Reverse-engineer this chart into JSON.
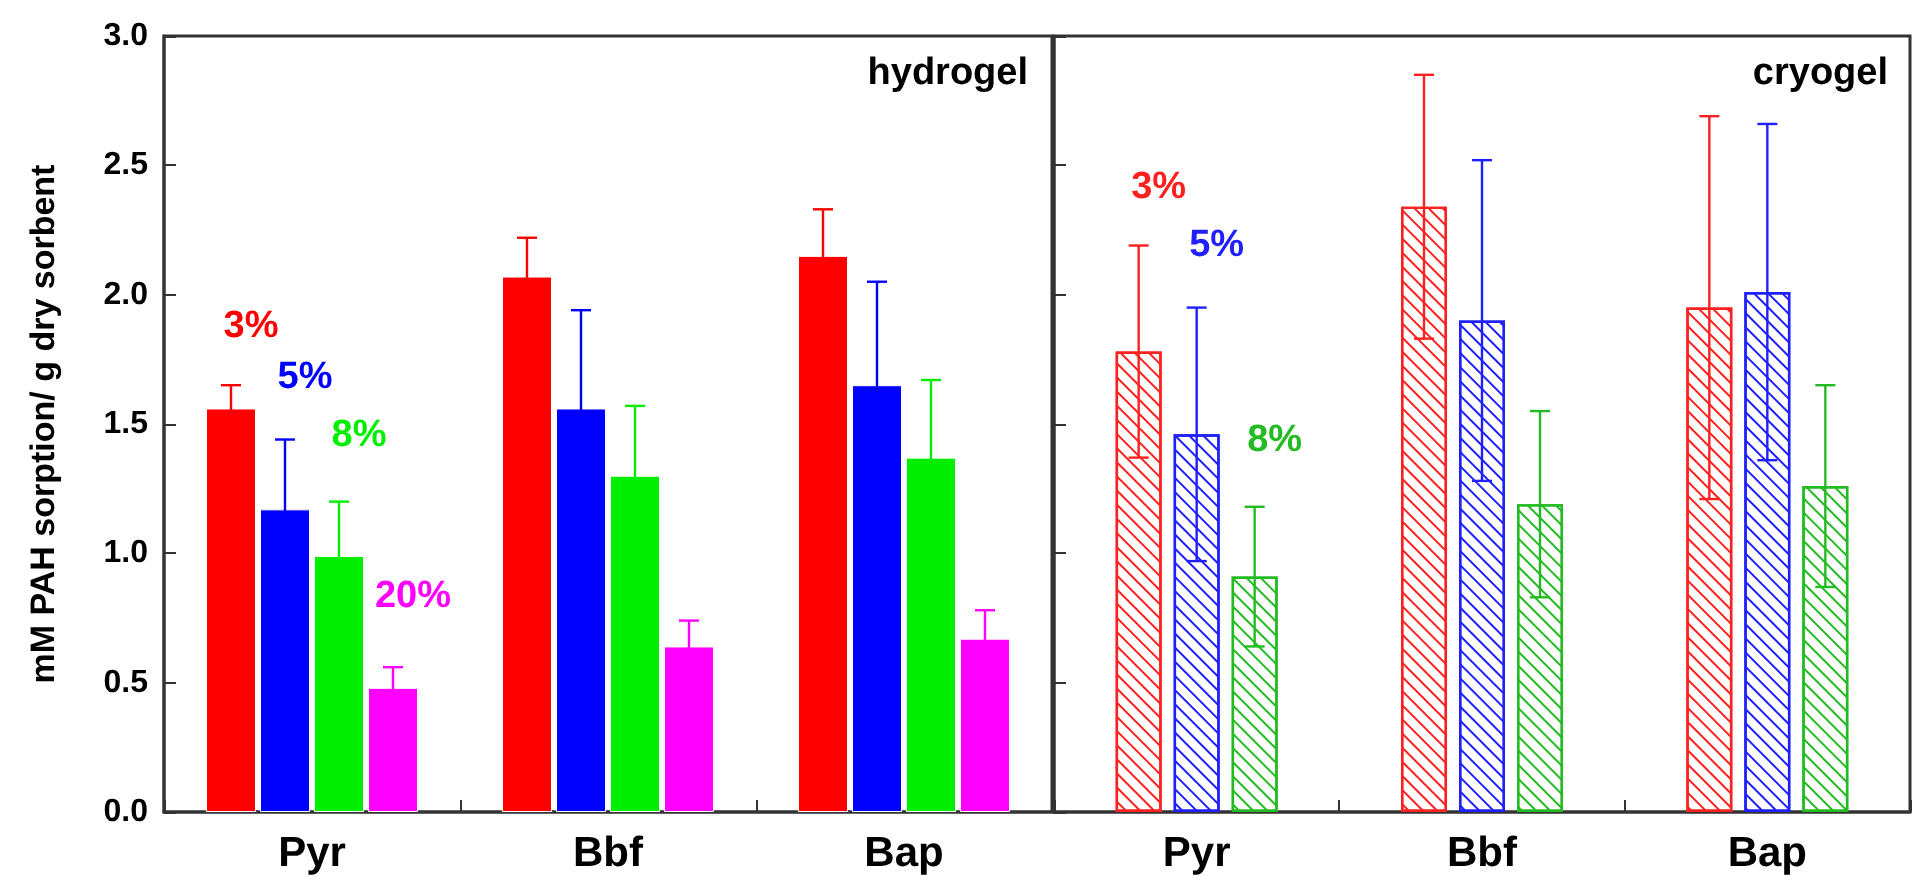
{
  "chart_data": [
    {
      "type": "bar",
      "title": "hydrogel",
      "ylabel": "mM PAH sorption/ g dry sorbent",
      "categories": [
        "Pyr",
        "Bbf",
        "Bap"
      ],
      "ylim": [
        0,
        3
      ],
      "yticks": [
        {
          "value": 0,
          "label": "0.0"
        },
        {
          "value": 0.5,
          "label": "0.5"
        },
        {
          "value": 1,
          "label": "1.0"
        },
        {
          "value": 1.5,
          "label": "1.5"
        },
        {
          "value": 2,
          "label": "2.0"
        },
        {
          "value": 2.5,
          "label": "2.5"
        },
        {
          "value": 3,
          "label": "3.0"
        }
      ],
      "legend": false,
      "grid": false,
      "series": [
        {
          "name": "3%",
          "color": "#ff0000",
          "values": [
            1.56,
            2.07,
            2.15
          ],
          "errors": [
            0.09,
            0.15,
            0.18
          ]
        },
        {
          "name": "5%",
          "color": "#0000ff",
          "values": [
            1.17,
            1.56,
            1.65
          ],
          "errors": [
            0.27,
            0.38,
            0.4
          ]
        },
        {
          "name": "8%",
          "color": "#00ee00",
          "values": [
            0.99,
            1.3,
            1.37
          ],
          "errors": [
            0.21,
            0.27,
            0.3
          ]
        },
        {
          "name": "20%",
          "color": "#ff00ff",
          "values": [
            0.48,
            0.64,
            0.67
          ],
          "errors": [
            0.08,
            0.1,
            0.11
          ]
        }
      ]
    },
    {
      "type": "bar",
      "title": "cryogel",
      "categories": [
        "Pyr",
        "Bbf",
        "Bap"
      ],
      "ylim": [
        0,
        3
      ],
      "yticks": [
        0,
        0.5,
        1,
        1.5,
        2,
        2.5,
        3
      ],
      "tick_labels": "x",
      "legend": false,
      "grid": false,
      "series": [
        {
          "name": "3%",
          "color": "#ff2020",
          "values": [
            1.78,
            2.34,
            1.95
          ],
          "errors": [
            0.41,
            0.51,
            0.74
          ]
        },
        {
          "name": "5%",
          "color": "#2020ff",
          "values": [
            1.46,
            1.9,
            2.01
          ],
          "errors": [
            0.49,
            0.62,
            0.65
          ]
        },
        {
          "name": "8%",
          "color": "#22bb22",
          "values": [
            0.91,
            1.19,
            1.26
          ],
          "errors": [
            0.27,
            0.36,
            0.39
          ]
        }
      ]
    }
  ]
}
